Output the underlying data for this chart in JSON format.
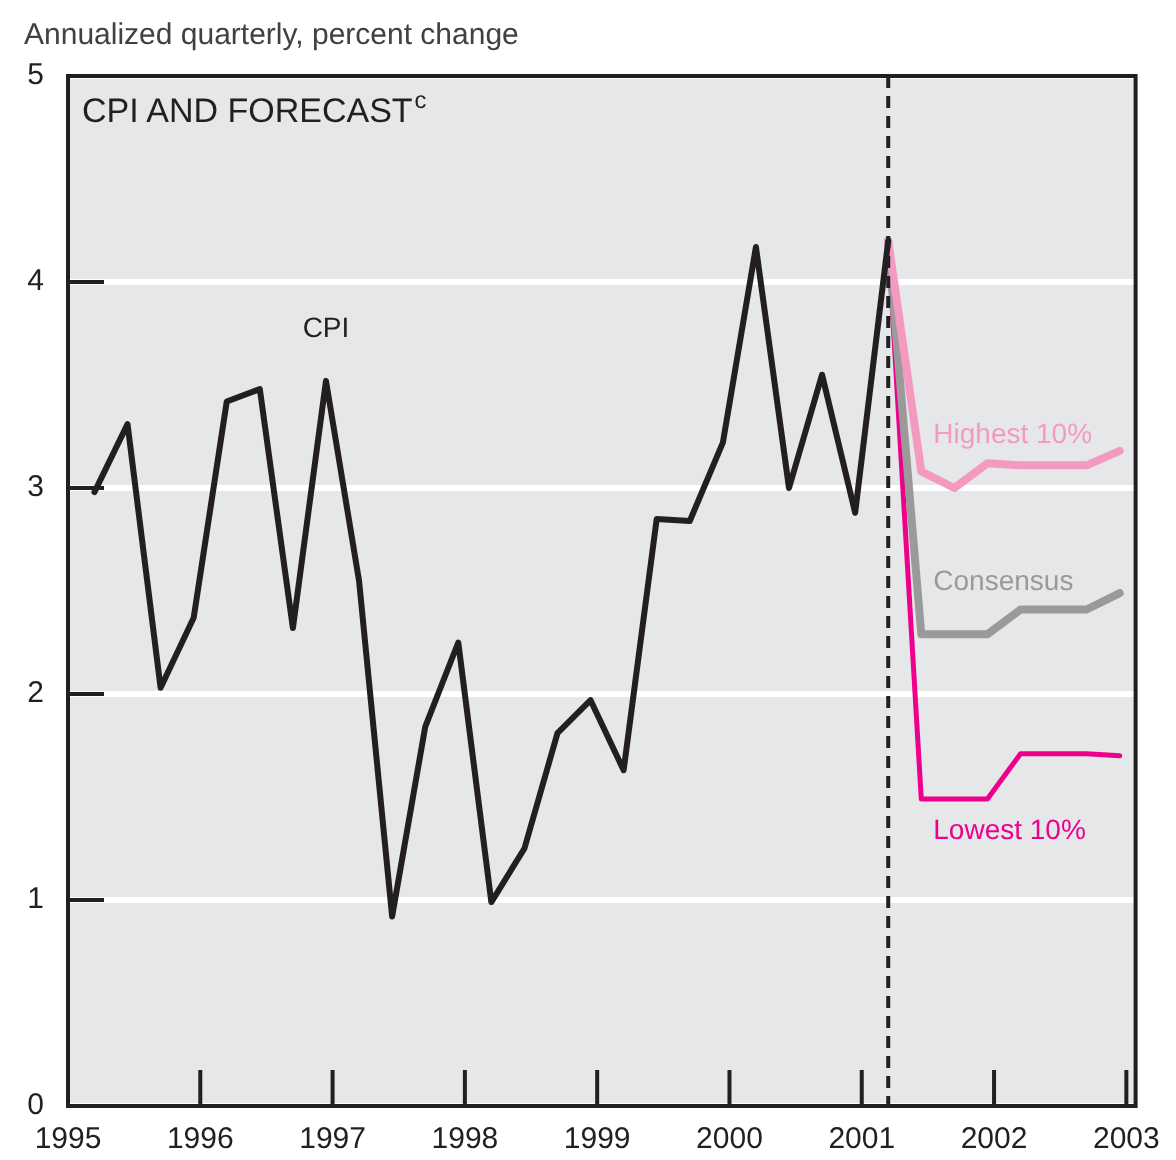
{
  "chart_data": {
    "type": "line",
    "title": "CPI AND FORECAST$^{c}$",
    "ylabel": "Annualized quarterly, percent change",
    "xlim": [
      1995,
      2003.07
    ],
    "xticks": [
      1995,
      1996,
      1997,
      1998,
      1999,
      2000,
      2001,
      2002,
      2003
    ],
    "ylim": [
      0,
      5
    ],
    "yticks": [
      0,
      1,
      2,
      3,
      4,
      5
    ],
    "grid": "y",
    "legend": false,
    "marker": "none",
    "line_style": "solid",
    "ref_lines": [
      {
        "axis": "x",
        "value": 2001.2,
        "line_style": "dashed",
        "color": "#231f20"
      }
    ],
    "series": [
      {
        "name": "CPI",
        "color": "#231f20",
        "x": [
          1995.2,
          1995.45,
          1995.7,
          1995.95,
          1996.2,
          1996.45,
          1996.7,
          1996.95,
          1997.2,
          1997.45,
          1997.7,
          1997.95,
          1998.2,
          1998.45,
          1998.7,
          1998.95,
          1999.2,
          1999.45,
          1999.7,
          1999.95,
          2000.2,
          2000.45,
          2000.7,
          2000.95,
          2001.2
        ],
        "values": [
          2.98,
          3.31,
          2.03,
          2.37,
          3.42,
          3.48,
          2.32,
          3.52,
          2.55,
          0.92,
          1.84,
          2.25,
          0.99,
          1.25,
          1.81,
          1.97,
          1.63,
          2.85,
          2.84,
          3.22,
          4.17,
          3.0,
          3.55,
          2.88,
          4.2
        ]
      },
      {
        "name": "Highest 10%",
        "color": "#f49ac1",
        "x": [
          2001.2,
          2001.45,
          2001.7,
          2001.95,
          2002.2,
          2002.45,
          2002.7,
          2002.95
        ],
        "values": [
          4.2,
          3.08,
          3.0,
          3.12,
          3.11,
          3.11,
          3.11,
          3.18
        ]
      },
      {
        "name": "Consensus",
        "color": "#9a9a9a",
        "x": [
          2001.2,
          2001.45,
          2001.7,
          2001.95,
          2002.2,
          2002.45,
          2002.7,
          2002.95
        ],
        "values": [
          4.2,
          2.29,
          2.29,
          2.29,
          2.41,
          2.41,
          2.41,
          2.49
        ]
      },
      {
        "name": "Lowest 10%",
        "color": "#ec008c",
        "x": [
          2001.2,
          2001.45,
          2001.7,
          2001.95,
          2002.2,
          2002.45,
          2002.7,
          2002.95
        ],
        "values": [
          4.2,
          1.49,
          1.49,
          1.49,
          1.71,
          1.71,
          1.71,
          1.7
        ]
      }
    ]
  }
}
